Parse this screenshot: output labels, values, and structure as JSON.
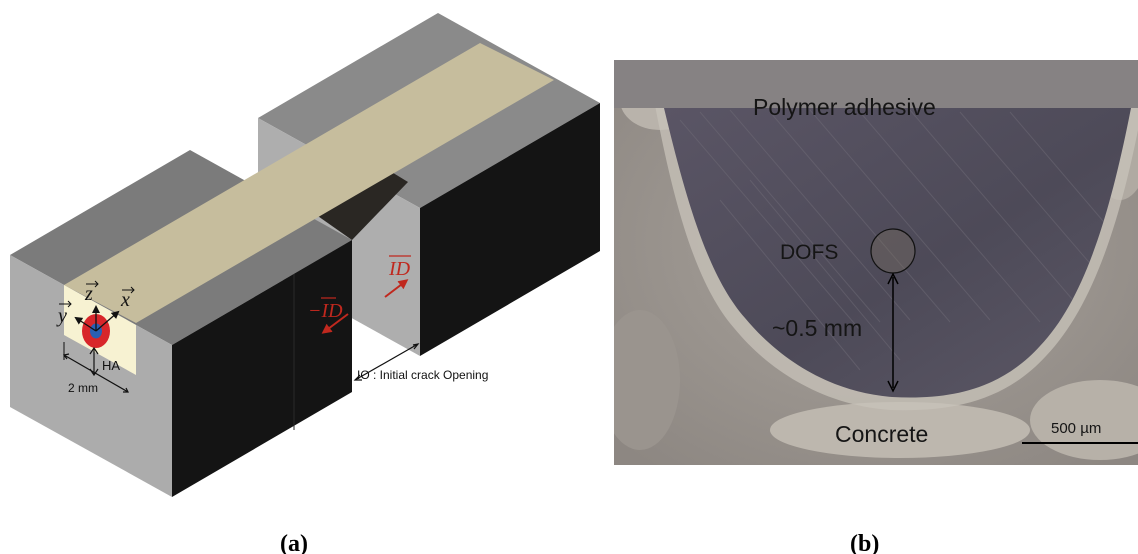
{
  "panel_a": {
    "caption": "(a)",
    "axes": {
      "z": "z",
      "y": "y",
      "x": "x"
    },
    "ha_label": "HA",
    "width_label": "2 mm",
    "neg_id_label": "−ID",
    "id_label": "ID",
    "io_label": "IO : Initial crack Opening",
    "colors": {
      "block_dark": "#141414",
      "block_gray": "#7b7b7b",
      "adhesive": "#c6bd9d",
      "fiber_red": "#d8262a",
      "fiber_blue": "#2a5fb4"
    }
  },
  "panel_b": {
    "caption": "(b)",
    "polymer_label": "Polymer adhesive",
    "dofs_label": "DOFS",
    "distance_label": "~0.5 mm",
    "concrete_label": "Concrete",
    "scale_label": "500 µm"
  }
}
